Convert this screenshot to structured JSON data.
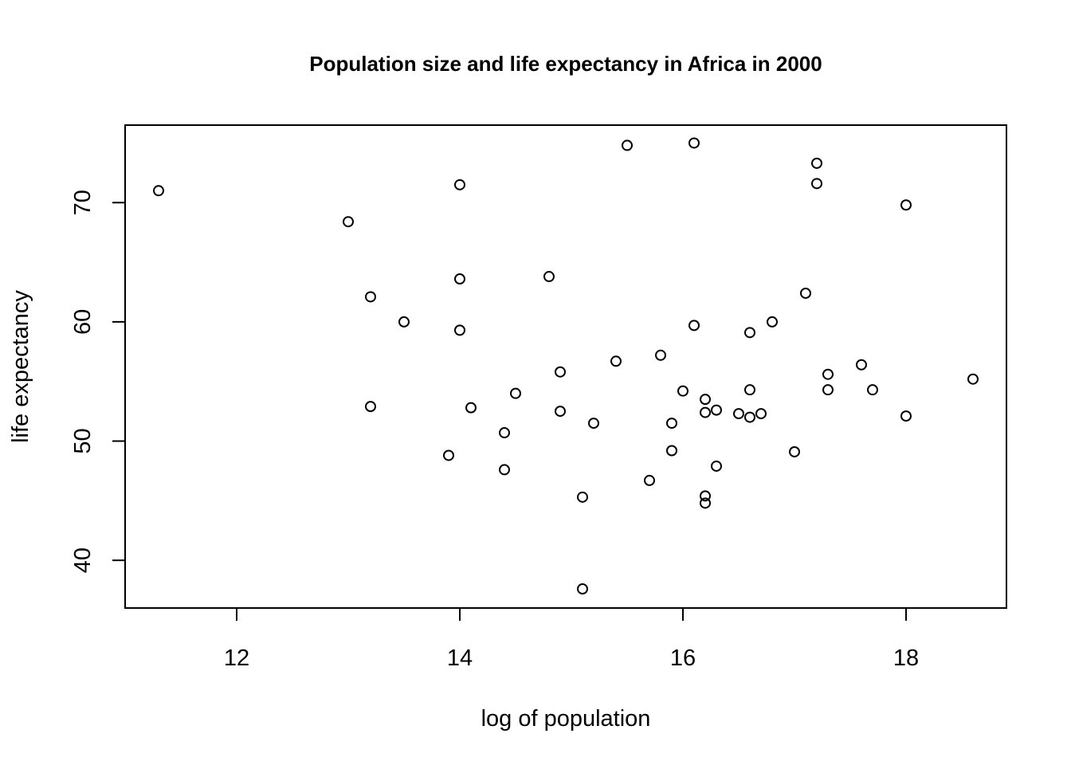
{
  "chart_data": {
    "type": "scatter",
    "title": "Population size and life expectancy in Africa in 2000",
    "xlabel": "log of population",
    "ylabel": "life expectancy",
    "xlim": [
      11.0,
      18.9
    ],
    "ylim": [
      36.0,
      76.5
    ],
    "xticks": [
      12,
      14,
      16,
      18
    ],
    "yticks": [
      40,
      50,
      60,
      70
    ],
    "grid": false,
    "legend": "none",
    "marker": "open-circle",
    "color": "#000000",
    "x": [
      11.3,
      13.0,
      13.2,
      13.5,
      13.9,
      14.0,
      14.0,
      14.0,
      14.1,
      14.4,
      14.4,
      14.5,
      14.8,
      14.9,
      14.9,
      15.1,
      15.1,
      15.2,
      15.4,
      15.5,
      15.7,
      15.8,
      15.9,
      15.9,
      16.0,
      16.1,
      16.1,
      16.2,
      16.2,
      16.2,
      16.2,
      16.3,
      16.3,
      16.5,
      16.6,
      16.6,
      16.6,
      16.7,
      16.8,
      17.0,
      17.1,
      17.2,
      17.2,
      17.3,
      17.3,
      17.6,
      17.7,
      18.0,
      18.0,
      18.6,
      13.2
    ],
    "y": [
      71.0,
      68.4,
      62.1,
      60.0,
      48.8,
      71.5,
      63.6,
      59.3,
      52.8,
      47.6,
      50.7,
      54.0,
      63.8,
      55.8,
      52.5,
      37.6,
      45.3,
      51.5,
      56.7,
      74.8,
      46.7,
      57.2,
      49.2,
      51.5,
      54.2,
      75.0,
      59.7,
      44.8,
      53.5,
      52.4,
      45.4,
      52.6,
      47.9,
      52.3,
      59.1,
      54.3,
      52.0,
      52.3,
      60.0,
      49.1,
      62.4,
      71.6,
      73.3,
      55.6,
      54.3,
      56.4,
      54.3,
      52.1,
      69.8,
      55.2,
      52.9
    ]
  }
}
